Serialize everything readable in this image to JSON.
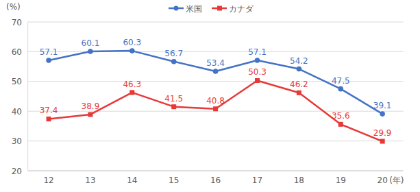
{
  "chart_data": {
    "type": "line",
    "y_label": "(%)",
    "x_label": "(年)",
    "categories": [
      "12",
      "13",
      "14",
      "15",
      "16",
      "17",
      "18",
      "19",
      "20"
    ],
    "series": [
      {
        "name": "米国",
        "color": "#4472c4",
        "marker": "circle",
        "values": [
          57.1,
          60.1,
          60.3,
          56.7,
          53.4,
          57.1,
          54.2,
          47.5,
          39.1
        ]
      },
      {
        "name": "カナダ",
        "color": "#e83838",
        "marker": "square",
        "values": [
          37.4,
          38.9,
          46.3,
          41.5,
          40.8,
          50.3,
          46.2,
          35.6,
          29.9
        ]
      }
    ],
    "ylim": [
      20,
      70
    ],
    "yticks": [
      20,
      30,
      40,
      50,
      60,
      70
    ],
    "grid": true,
    "data_labels": true,
    "legend": "top"
  }
}
